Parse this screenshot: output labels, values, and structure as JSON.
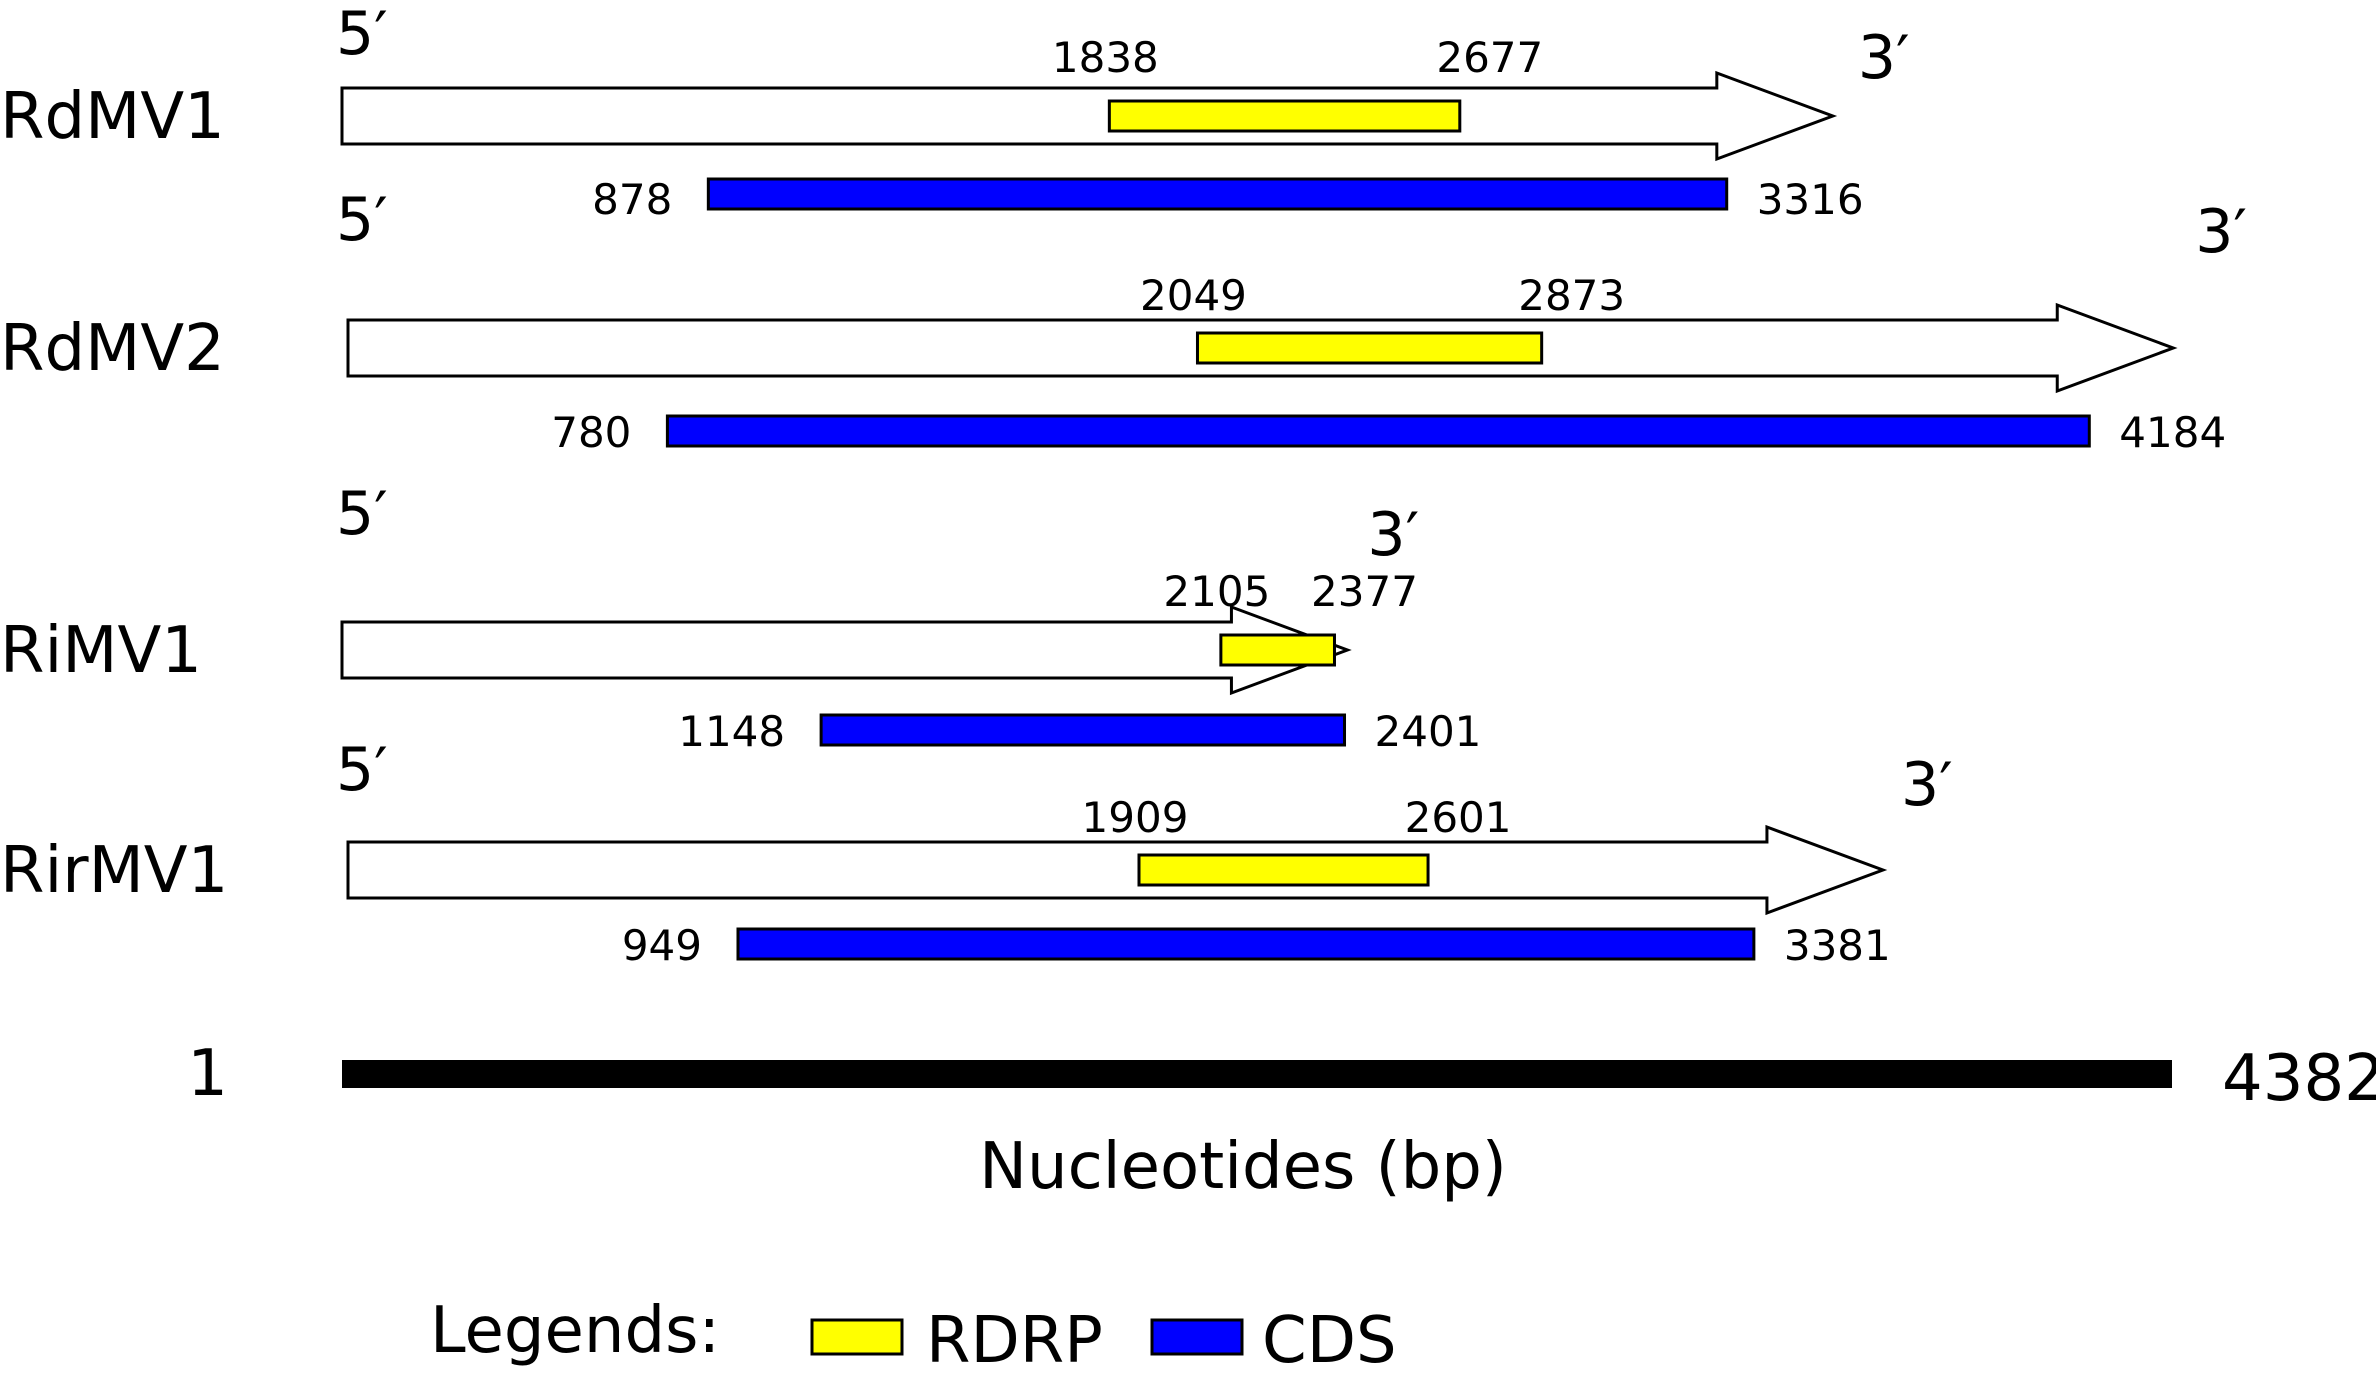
{
  "title": "",
  "genome_length": 4382,
  "scale": {
    "start_label": "1",
    "end_label": "4382",
    "axis_label": "Nucleotides (bp)"
  },
  "colors": {
    "rdrp": "#ffff00",
    "cds": "#0000ff",
    "arrow_fill": "#ffffff",
    "scale_bar": "#000000"
  },
  "viruses": [
    {
      "name": "RdMV1",
      "five_prime": "5′",
      "three_prime": "3′",
      "length_nt": 3570,
      "rdrp": {
        "start": 1838,
        "end": 2677,
        "start_label": "1838",
        "end_label": "2677"
      },
      "cds": {
        "start": 878,
        "end": 3316,
        "start_label": "878",
        "end_label": "3316"
      }
    },
    {
      "name": "RdMV2",
      "five_prime": "5′",
      "three_prime": "3′",
      "length_nt": 4385,
      "rdrp": {
        "start": 2049,
        "end": 2873,
        "start_label": "2049",
        "end_label": "2873"
      },
      "cds": {
        "start": 780,
        "end": 4184,
        "start_label": "780",
        "end_label": "4184"
      }
    },
    {
      "name": "RiMV1",
      "five_prime": "5′",
      "three_prime": "3′",
      "length_nt": 2408,
      "rdrp": {
        "start": 2105,
        "end": 2377,
        "start_label": "2105",
        "end_label": "2377"
      },
      "cds": {
        "start": 1148,
        "end": 2401,
        "start_label": "1148",
        "end_label": "2401"
      }
    },
    {
      "name": "RirMV1",
      "five_prime": "5′",
      "three_prime": "3′",
      "length_nt": 3690,
      "rdrp": {
        "start": 1909,
        "end": 2601,
        "start_label": "1909",
        "end_label": "2601"
      },
      "cds": {
        "start": 949,
        "end": 3381,
        "start_label": "949",
        "end_label": "3381"
      }
    }
  ],
  "legend": {
    "heading": "Legends:",
    "items": [
      {
        "label": "RDRP",
        "color": "#ffff00"
      },
      {
        "label": "CDS",
        "color": "#0000ff"
      }
    ]
  }
}
